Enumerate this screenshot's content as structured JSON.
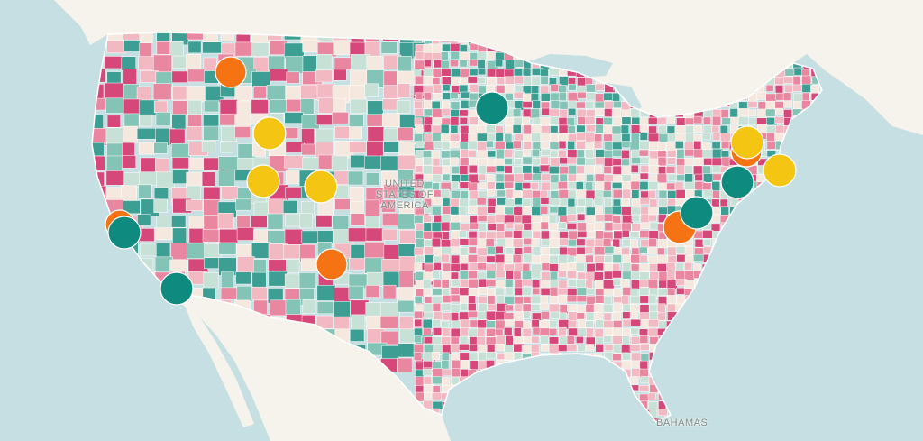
{
  "map": {
    "country_label_lines": [
      "UNITED",
      "STATES OF",
      "AMERICA"
    ],
    "bahamas_label": "BAHAMAS",
    "colors": {
      "water": "#c6dfe2",
      "land": "#f6f3ec",
      "county_border": "#ffffff",
      "choropleth_palette": [
        "#d6487a",
        "#e8879f",
        "#f2b9c3",
        "#f5e9df",
        "#c8e1d6",
        "#84c4b6",
        "#3d9e93"
      ]
    },
    "marker_colors": {
      "orange": "#f57313",
      "yellow": "#f4c613",
      "teal": "#0e8a7e"
    },
    "markers": [
      {
        "name": "marker-northern-idaho",
        "color": "orange"
      },
      {
        "name": "marker-western-montana",
        "color": "yellow"
      },
      {
        "name": "marker-southern-idaho",
        "color": "yellow"
      },
      {
        "name": "marker-northern-colorado",
        "color": "yellow"
      },
      {
        "name": "marker-northern-california-orange",
        "color": "orange"
      },
      {
        "name": "marker-northern-california-teal",
        "color": "teal"
      },
      {
        "name": "marker-southern-california",
        "color": "teal"
      },
      {
        "name": "marker-new-mexico",
        "color": "orange"
      },
      {
        "name": "marker-minnesota",
        "color": "teal"
      },
      {
        "name": "marker-upstate-new-york-orange",
        "color": "orange"
      },
      {
        "name": "marker-upstate-new-york-yellow",
        "color": "yellow"
      },
      {
        "name": "marker-new-england",
        "color": "yellow"
      },
      {
        "name": "marker-new-jersey",
        "color": "teal"
      },
      {
        "name": "marker-virginia-orange",
        "color": "orange"
      },
      {
        "name": "marker-virginia-teal",
        "color": "teal"
      }
    ]
  }
}
